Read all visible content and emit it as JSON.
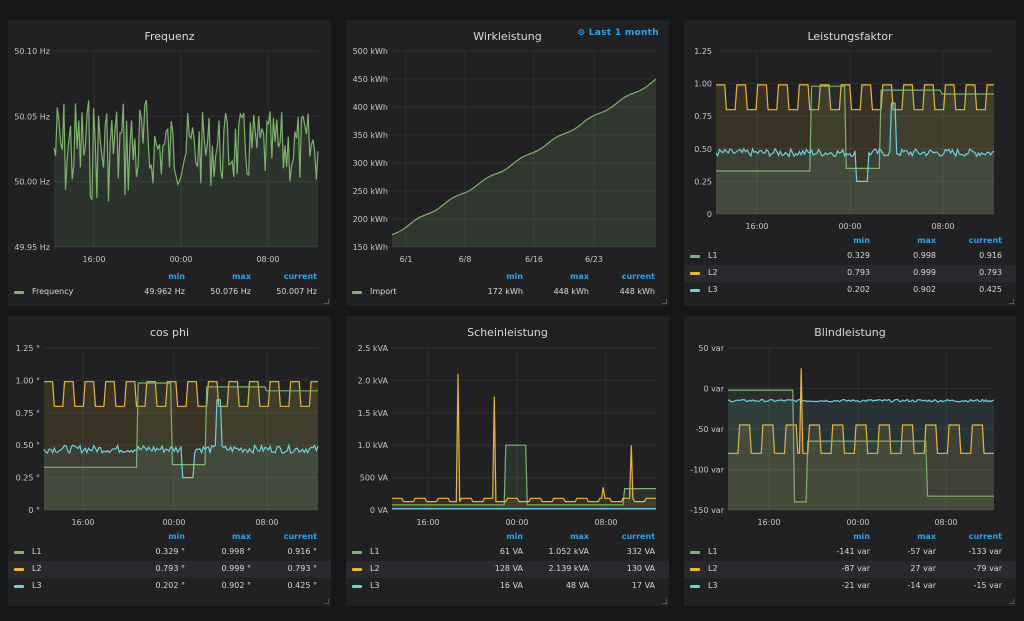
{
  "time_picker": "Last 1 month",
  "colors": {
    "green": "#7eb26d",
    "yellow": "#eab839",
    "blue": "#6ed0e0",
    "axis_text": "#c7c7c7",
    "header": "#33a2e5",
    "panel_bg": "#212124"
  },
  "legend_headers": {
    "min": "min",
    "max": "max",
    "current": "current"
  },
  "panels": [
    {
      "title": "Frequenz",
      "y_ticks": [
        "50.10 Hz",
        "50.05 Hz",
        "50.00 Hz",
        "49.95 Hz"
      ],
      "x_ticks": [
        "16:00",
        "00:00",
        "08:00"
      ],
      "legend": [
        {
          "name": "Frequency",
          "color": "green",
          "min": "49.962 Hz",
          "max": "50.076 Hz",
          "current": "50.007 Hz"
        }
      ]
    },
    {
      "title": "Wirkleistung",
      "y_ticks": [
        "500 kWh",
        "450 kWh",
        "400 kWh",
        "350 kWh",
        "300 kWh",
        "250 kWh",
        "200 kWh",
        "150 kWh"
      ],
      "x_ticks": [
        "6/1",
        "6/8",
        "6/16",
        "6/23"
      ],
      "legend": [
        {
          "name": "Import",
          "color": "green",
          "min": "172 kWh",
          "max": "448 kWh",
          "current": "448 kWh"
        }
      ]
    },
    {
      "title": "Leistungsfaktor",
      "y_ticks": [
        "1.25",
        "1.00",
        "0.75",
        "0.50",
        "0.25",
        "0"
      ],
      "x_ticks": [
        "16:00",
        "00:00",
        "08:00"
      ],
      "legend": [
        {
          "name": "L1",
          "color": "green",
          "min": "0.329",
          "max": "0.998",
          "current": "0.916"
        },
        {
          "name": "L2",
          "color": "yellow",
          "min": "0.793",
          "max": "0.999",
          "current": "0.793"
        },
        {
          "name": "L3",
          "color": "blue",
          "min": "0.202",
          "max": "0.902",
          "current": "0.425"
        }
      ]
    },
    {
      "title": "cos phi",
      "y_ticks": [
        "1.25 °",
        "1.00 °",
        "0.75 °",
        "0.50 °",
        "0.25 °",
        "0 °"
      ],
      "x_ticks": [
        "16:00",
        "00:00",
        "08:00"
      ],
      "legend": [
        {
          "name": "L1",
          "color": "green",
          "min": "0.329 °",
          "max": "0.998 °",
          "current": "0.916 °"
        },
        {
          "name": "L2",
          "color": "yellow",
          "min": "0.793 °",
          "max": "0.999 °",
          "current": "0.793 °"
        },
        {
          "name": "L3",
          "color": "blue",
          "min": "0.202 °",
          "max": "0.902 °",
          "current": "0.425 °"
        }
      ]
    },
    {
      "title": "Scheinleistung",
      "y_ticks": [
        "2.5 kVA",
        "2.0 kVA",
        "1.5 kVA",
        "1.0 kVA",
        "500 VA",
        "0 VA"
      ],
      "x_ticks": [
        "16:00",
        "00:00",
        "08:00"
      ],
      "legend": [
        {
          "name": "L1",
          "color": "green",
          "min": "61 VA",
          "max": "1.052 kVA",
          "current": "332 VA"
        },
        {
          "name": "L2",
          "color": "yellow",
          "min": "128 VA",
          "max": "2.139 kVA",
          "current": "130 VA"
        },
        {
          "name": "L3",
          "color": "blue",
          "min": "16 VA",
          "max": "48 VA",
          "current": "17 VA"
        }
      ]
    },
    {
      "title": "Blindleistung",
      "y_ticks": [
        "50 var",
        "0 var",
        "-50 var",
        "-100 var",
        "-150 var"
      ],
      "x_ticks": [
        "16:00",
        "00:00",
        "08:00"
      ],
      "legend": [
        {
          "name": "L1",
          "color": "green",
          "min": "-141 var",
          "max": "-57 var",
          "current": "-133 var"
        },
        {
          "name": "L2",
          "color": "yellow",
          "min": "-87 var",
          "max": "27 var",
          "current": "-79 var"
        },
        {
          "name": "L3",
          "color": "blue",
          "min": "-21 var",
          "max": "-14 var",
          "current": "-15 var"
        }
      ]
    }
  ]
}
